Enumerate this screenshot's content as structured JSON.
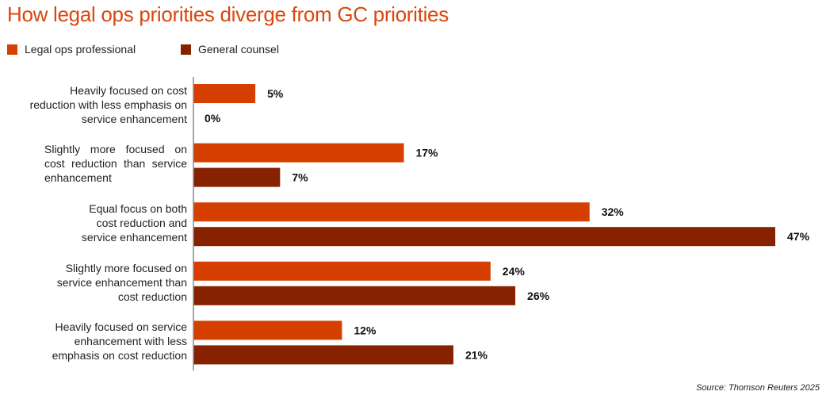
{
  "chart_data": {
    "type": "bar",
    "orientation": "horizontal",
    "title": "How legal ops priorities diverge from GC priorities",
    "categories": [
      "Heavily focused on cost reduction with less emphasis on service enhancement",
      "Slightly more focused on cost reduction than service enhancement",
      "Equal focus on both cost reduction and service enhancement",
      "Slightly more focused on service enhancement than cost reduction",
      "Heavily focused on service enhancement with less emphasis on cost reduction"
    ],
    "series": [
      {
        "name": "Legal ops professional",
        "color": "#D54000",
        "values": [
          5,
          17,
          32,
          24,
          12
        ]
      },
      {
        "name": "General counsel",
        "color": "#862200",
        "values": [
          0,
          7,
          47,
          26,
          21
        ]
      }
    ],
    "value_format": "percent",
    "xlim": [
      0,
      47
    ],
    "grid": false,
    "legend": "top-left",
    "source": "Source: Thomson Reuters 2025"
  }
}
